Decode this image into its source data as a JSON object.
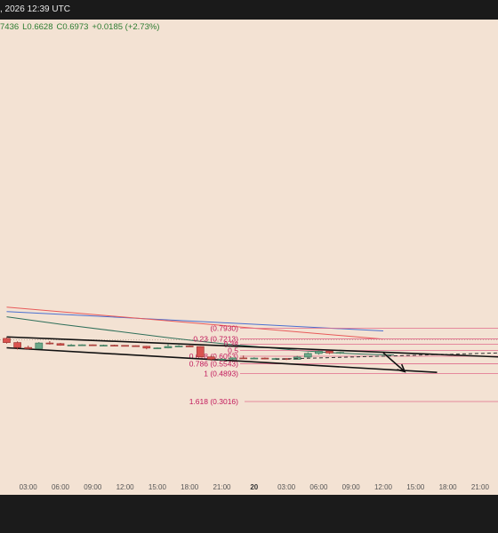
{
  "header": {
    "timestamp": ", 2026 12:39 UTC"
  },
  "ohlc": {
    "open": "7436",
    "low": "L0.6628",
    "close": "C0.6973",
    "change": "+0.0185 (+2.73%)"
  },
  "colors": {
    "background": "#f3e2d3",
    "up": "#6aa889",
    "down": "#d9534f",
    "fib": "#e06b8b",
    "channel": "#111111",
    "ma_blue": "#4a6fd0",
    "ma_red": "#e85a5a",
    "ma_green": "#2f6f5a"
  },
  "chart_data": {
    "type": "candlestick",
    "xaxis": {
      "ticks": [
        {
          "label": "03:00",
          "bar": 2
        },
        {
          "label": "06:00",
          "bar": 5
        },
        {
          "label": "09:00",
          "bar": 8
        },
        {
          "label": "12:00",
          "bar": 11
        },
        {
          "label": "15:00",
          "bar": 14
        },
        {
          "label": "18:00",
          "bar": 17
        },
        {
          "label": "21:00",
          "bar": 20
        },
        {
          "label": "20",
          "bar": 23,
          "bold": true
        },
        {
          "label": "03:00",
          "bar": 26
        },
        {
          "label": "06:00",
          "bar": 29
        },
        {
          "label": "09:00",
          "bar": 32
        },
        {
          "label": "12:00",
          "bar": 35
        },
        {
          "label": "15:00",
          "bar": 38
        },
        {
          "label": "18:00",
          "bar": 41
        },
        {
          "label": "21:00",
          "bar": 44
        }
      ]
    },
    "candles": [
      {
        "o": 0.725,
        "h": 0.732,
        "l": 0.69,
        "c": 0.697
      },
      {
        "o": 0.697,
        "h": 0.705,
        "l": 0.65,
        "c": 0.664
      },
      {
        "o": 0.664,
        "h": 0.676,
        "l": 0.651,
        "c": 0.656
      },
      {
        "o": 0.656,
        "h": 0.7,
        "l": 0.653,
        "c": 0.694
      },
      {
        "o": 0.694,
        "h": 0.707,
        "l": 0.684,
        "c": 0.69
      },
      {
        "o": 0.69,
        "h": 0.695,
        "l": 0.676,
        "c": 0.679
      },
      {
        "o": 0.679,
        "h": 0.687,
        "l": 0.676,
        "c": 0.68
      },
      {
        "o": 0.68,
        "h": 0.685,
        "l": 0.678,
        "c": 0.682
      },
      {
        "o": 0.682,
        "h": 0.684,
        "l": 0.677,
        "c": 0.678
      },
      {
        "o": 0.678,
        "h": 0.683,
        "l": 0.677,
        "c": 0.679
      },
      {
        "o": 0.679,
        "h": 0.682,
        "l": 0.677,
        "c": 0.678
      },
      {
        "o": 0.678,
        "h": 0.68,
        "l": 0.674,
        "c": 0.676
      },
      {
        "o": 0.676,
        "h": 0.678,
        "l": 0.669,
        "c": 0.672
      },
      {
        "o": 0.672,
        "h": 0.675,
        "l": 0.652,
        "c": 0.66
      },
      {
        "o": 0.66,
        "h": 0.664,
        "l": 0.656,
        "c": 0.661
      },
      {
        "o": 0.661,
        "h": 0.688,
        "l": 0.658,
        "c": 0.671
      },
      {
        "o": 0.671,
        "h": 0.68,
        "l": 0.668,
        "c": 0.674
      },
      {
        "o": 0.674,
        "h": 0.678,
        "l": 0.668,
        "c": 0.67
      },
      {
        "o": 0.67,
        "h": 0.672,
        "l": 0.598,
        "c": 0.601
      },
      {
        "o": 0.601,
        "h": 0.608,
        "l": 0.575,
        "c": 0.586
      },
      {
        "o": 0.586,
        "h": 0.592,
        "l": 0.575,
        "c": 0.586
      },
      {
        "o": 0.586,
        "h": 0.596,
        "l": 0.582,
        "c": 0.594
      },
      {
        "o": 0.594,
        "h": 0.61,
        "l": 0.588,
        "c": 0.591
      },
      {
        "o": 0.591,
        "h": 0.598,
        "l": 0.586,
        "c": 0.593
      },
      {
        "o": 0.593,
        "h": 0.597,
        "l": 0.585,
        "c": 0.588
      },
      {
        "o": 0.588,
        "h": 0.594,
        "l": 0.582,
        "c": 0.59
      },
      {
        "o": 0.59,
        "h": 0.592,
        "l": 0.58,
        "c": 0.584
      },
      {
        "o": 0.584,
        "h": 0.608,
        "l": 0.582,
        "c": 0.6
      },
      {
        "o": 0.6,
        "h": 0.632,
        "l": 0.596,
        "c": 0.624
      },
      {
        "o": 0.624,
        "h": 0.643,
        "l": 0.616,
        "c": 0.639
      },
      {
        "o": 0.639,
        "h": 0.641,
        "l": 0.62,
        "c": 0.627
      },
      {
        "o": 0.627,
        "h": 0.634,
        "l": 0.621,
        "c": 0.631
      }
    ],
    "moving_averages": [
      {
        "color": "blue",
        "points": [
          [
            0,
            0.905
          ],
          [
            35,
            0.775
          ]
        ]
      },
      {
        "color": "red",
        "points": [
          [
            0,
            0.935
          ],
          [
            35,
            0.72
          ]
        ]
      },
      {
        "color": "green",
        "points": [
          [
            0,
            0.87
          ],
          [
            5,
            0.82
          ],
          [
            10,
            0.775
          ],
          [
            15,
            0.73
          ],
          [
            18,
            0.705
          ],
          [
            20,
            0.69
          ],
          [
            24,
            0.665
          ],
          [
            27,
            0.645
          ],
          [
            30,
            0.63
          ],
          [
            33,
            0.62
          ],
          [
            36,
            0.614
          ]
        ]
      }
    ],
    "channel": [
      {
        "from": [
          0,
          0.735
        ],
        "to": [
          46,
          0.6
        ]
      },
      {
        "from": [
          0,
          0.662
        ],
        "to": [
          40,
          0.497
        ]
      }
    ],
    "fibonacci": [
      {
        "label": "(0.7930)",
        "price": 0.793,
        "labelled": true
      },
      {
        "label": "0.23 (0.7213)",
        "price": 0.7213,
        "labelled": true
      },
      {
        "label": "0.38",
        "price": 0.685,
        "labelled": true
      },
      {
        "label": "0.5",
        "price": 0.6434,
        "labelled": true
      },
      {
        "label": "0.618 (0.6053)",
        "price": 0.6053,
        "labelled": true
      },
      {
        "label": "0.786 (0.5543)",
        "price": 0.5543,
        "labelled": true
      },
      {
        "label": "1 (0.4893)",
        "price": 0.4893,
        "labelled": true
      },
      {
        "label": "1.618 (0.3016)",
        "price": 0.3016,
        "labelled": true
      }
    ],
    "projection": {
      "from": [
        35,
        0.628
      ],
      "to": [
        37,
        0.502
      ]
    },
    "dashed_path": {
      "from": [
        25,
        0.586
      ],
      "to": [
        47,
        0.63
      ]
    }
  }
}
